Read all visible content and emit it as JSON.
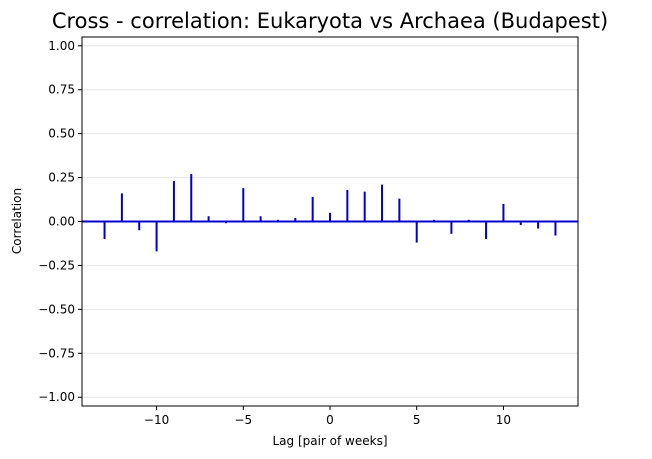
{
  "chart_data": {
    "type": "bar",
    "title": "Cross - correlation: Eukaryota vs Archaea (Budapest)",
    "xlabel": "Lag [pair of weeks]",
    "ylabel": "Correlation",
    "xlim": [
      -14.3,
      14.3
    ],
    "ylim": [
      -1.05,
      1.05
    ],
    "xticks": [
      -10,
      -5,
      0,
      5,
      10
    ],
    "xtick_labels": [
      "−10",
      "−5",
      "0",
      "5",
      "10"
    ],
    "yticks": [
      1.0,
      0.75,
      0.5,
      0.25,
      0.0,
      -0.25,
      -0.5,
      -0.75,
      -1.0
    ],
    "ytick_labels": [
      "1.00",
      "0.75",
      "0.50",
      "0.25",
      "0.00",
      "−0.25",
      "−0.50",
      "−0.75",
      "−1.00"
    ],
    "grid": "horizontal",
    "zero_line": true,
    "series": [
      {
        "color": "#0000cd",
        "lags": [
          -13,
          -12,
          -11,
          -10,
          -9,
          -8,
          -7,
          -6,
          -5,
          -4,
          -3,
          -2,
          -1,
          0,
          1,
          2,
          3,
          4,
          5,
          6,
          7,
          8,
          9,
          10,
          11,
          12,
          13
        ],
        "values": [
          -0.1,
          0.16,
          -0.05,
          -0.17,
          0.23,
          0.27,
          0.03,
          -0.01,
          0.19,
          0.03,
          0.01,
          0.02,
          0.14,
          0.05,
          0.18,
          0.17,
          0.21,
          0.13,
          -0.12,
          0.01,
          -0.07,
          0.01,
          -0.1,
          0.1,
          -0.02,
          -0.04,
          -0.08
        ]
      }
    ]
  }
}
